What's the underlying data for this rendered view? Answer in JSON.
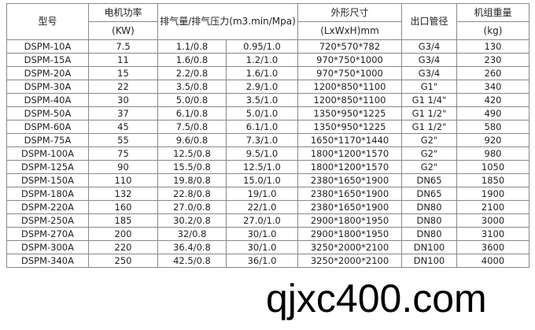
{
  "header": {
    "model": "型号",
    "power": "电机功率",
    "power_unit": "(KW)",
    "flow": "排气量/排气压力(m3.min/Mpa)",
    "dims": "外形尺寸",
    "dims_unit": "(LxWxH)mm",
    "outlet": "出口管径",
    "weight": "机组重量",
    "weight_unit": "(kg)"
  },
  "rows": [
    [
      "DSPM-10A",
      "7.5",
      "1.1/0.8",
      "0.95/1.0",
      "720*570*782",
      "G3/4",
      "130"
    ],
    [
      "DSPM-15A",
      "11",
      "1.6/0.8",
      "1.2/1.0",
      "970*750*1000",
      "G3/4",
      "230"
    ],
    [
      "DSPM-20A",
      "15",
      "2.2/0.8",
      "1.6/1.0",
      "970*750*1000",
      "G3/4",
      "260"
    ],
    [
      "DSPM-30A",
      "22",
      "3.5/0.8",
      "2.9/1.0",
      "1200*850*1100",
      "G1\"",
      "340"
    ],
    [
      "DSPM-40A",
      "30",
      "5.0/0.8",
      "3.5/1.0",
      "1200*850*1100",
      "G1 1/4\"",
      "420"
    ],
    [
      "DSPM-50A",
      "37",
      "6.1/0.8",
      "5.0/1.0",
      "1350*950*1225",
      "G1 1/2\"",
      "490"
    ],
    [
      "DSPM-60A",
      "45",
      "7.5/0.8",
      "6.1/1.0",
      "1350*950*1225",
      "G1 1/2\"",
      "580"
    ],
    [
      "DSPM-75A",
      "55",
      "9.6/0.8",
      "7.3/1.0",
      "1650*1170*1440",
      "G2\"",
      "920"
    ],
    [
      "DSPM-100A",
      "75",
      "12.5/0.8",
      "9.5/1.0",
      "1800*1200*1570",
      "G2\"",
      "980"
    ],
    [
      "DSPM-125A",
      "90",
      "15.5/0.8",
      "12.5/1.0",
      "1800*1200*1570",
      "G2\"",
      "1050"
    ],
    [
      "DSPM-150A",
      "110",
      "19.8/0.8",
      "15.0/1.0",
      "2380*1650*1900",
      "DN65",
      "1850"
    ],
    [
      "DSPM-180A",
      "132",
      "22.8/0.8",
      "19/1.0",
      "2380*1650*1900",
      "DN65",
      "1900"
    ],
    [
      "DSPM-220A",
      "160",
      "27.0/0.8",
      "22/1.0",
      "2380*1650*1900",
      "DN80",
      "2100"
    ],
    [
      "DSPM-250A",
      "185",
      "30.2/0.8",
      "27.0/1.0",
      "2900*1800*1950",
      "DN80",
      "3000"
    ],
    [
      "DSPM-270A",
      "200",
      "32/0.8",
      "30/1.0",
      "2900*1800*1950",
      "DN80",
      "3100"
    ],
    [
      "DSPM-300A",
      "220",
      "36.4/0.8",
      "30/1.0",
      "3250*2000*2100",
      "DN100",
      "3600"
    ],
    [
      "DSPM-340A",
      "250",
      "42.5/0.8",
      "36/1.0",
      "3250*2000*2100",
      "DN100",
      "4000"
    ]
  ],
  "watermark": "qjxc400.com"
}
